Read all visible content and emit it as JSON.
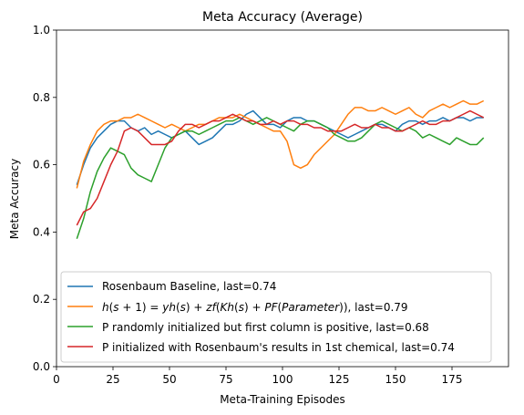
{
  "chart_data": {
    "type": "line",
    "title": "Meta Accuracy (Average)",
    "xlabel": "Meta-Training Episodes",
    "ylabel": "Meta Accuracy",
    "xlim": [
      0,
      200
    ],
    "ylim": [
      0.0,
      1.0
    ],
    "xticks": [
      0,
      25,
      50,
      75,
      100,
      125,
      150,
      175
    ],
    "xtick_labels": [
      "0",
      "25",
      "50",
      "75",
      "100",
      "125",
      "150",
      "175"
    ],
    "yticks": [
      0.0,
      0.2,
      0.4,
      0.6,
      0.8,
      1.0
    ],
    "ytick_labels": [
      "0.0",
      "0.2",
      "0.4",
      "0.6",
      "0.8",
      "1.0"
    ],
    "grid": false,
    "legend_position": "lower-left",
    "series": [
      {
        "name": "Rosenbaum Baseline, last=0.74",
        "color": "#1f77b4",
        "x": [
          9,
          12,
          15,
          18,
          21,
          24,
          27,
          30,
          33,
          36,
          39,
          42,
          45,
          48,
          51,
          54,
          57,
          60,
          63,
          66,
          69,
          72,
          75,
          78,
          81,
          84,
          87,
          90,
          93,
          96,
          99,
          102,
          105,
          108,
          111,
          114,
          117,
          120,
          123,
          126,
          129,
          132,
          135,
          138,
          141,
          144,
          147,
          150,
          153,
          156,
          159,
          162,
          165,
          168,
          171,
          174,
          177,
          180,
          183,
          186,
          189
        ],
        "y": [
          0.54,
          0.6,
          0.65,
          0.68,
          0.7,
          0.72,
          0.73,
          0.73,
          0.71,
          0.7,
          0.71,
          0.69,
          0.7,
          0.69,
          0.68,
          0.69,
          0.7,
          0.68,
          0.66,
          0.67,
          0.68,
          0.7,
          0.72,
          0.72,
          0.73,
          0.75,
          0.76,
          0.74,
          0.72,
          0.72,
          0.71,
          0.73,
          0.74,
          0.74,
          0.73,
          0.73,
          0.72,
          0.71,
          0.7,
          0.69,
          0.68,
          0.69,
          0.7,
          0.71,
          0.72,
          0.72,
          0.71,
          0.7,
          0.72,
          0.73,
          0.73,
          0.72,
          0.73,
          0.73,
          0.74,
          0.73,
          0.74,
          0.74,
          0.73,
          0.74,
          0.74
        ]
      },
      {
        "name": "h(s + 1) = yh(s) + zf(Kh(s) + PF(Parameter)), last=0.79",
        "color": "#ff7f0e",
        "x": [
          9,
          12,
          15,
          18,
          21,
          24,
          27,
          30,
          33,
          36,
          39,
          42,
          45,
          48,
          51,
          54,
          57,
          60,
          63,
          66,
          69,
          72,
          75,
          78,
          81,
          84,
          87,
          90,
          93,
          96,
          99,
          102,
          105,
          108,
          111,
          114,
          117,
          120,
          123,
          126,
          129,
          132,
          135,
          138,
          141,
          144,
          147,
          150,
          153,
          156,
          159,
          162,
          165,
          168,
          171,
          174,
          177,
          180,
          183,
          186,
          189
        ],
        "y": [
          0.53,
          0.61,
          0.66,
          0.7,
          0.72,
          0.73,
          0.73,
          0.74,
          0.74,
          0.75,
          0.74,
          0.73,
          0.72,
          0.71,
          0.72,
          0.71,
          0.7,
          0.71,
          0.72,
          0.72,
          0.73,
          0.74,
          0.74,
          0.74,
          0.75,
          0.74,
          0.73,
          0.72,
          0.71,
          0.7,
          0.7,
          0.67,
          0.6,
          0.59,
          0.6,
          0.63,
          0.65,
          0.67,
          0.69,
          0.72,
          0.75,
          0.77,
          0.77,
          0.76,
          0.76,
          0.77,
          0.76,
          0.75,
          0.76,
          0.77,
          0.75,
          0.74,
          0.76,
          0.77,
          0.78,
          0.77,
          0.78,
          0.79,
          0.78,
          0.78,
          0.79
        ]
      },
      {
        "name": "P randomly initialized but first column is positive, last=0.68",
        "color": "#2ca02c",
        "x": [
          9,
          12,
          15,
          18,
          21,
          24,
          27,
          30,
          33,
          36,
          39,
          42,
          45,
          48,
          51,
          54,
          57,
          60,
          63,
          66,
          69,
          72,
          75,
          78,
          81,
          84,
          87,
          90,
          93,
          96,
          99,
          102,
          105,
          108,
          111,
          114,
          117,
          120,
          123,
          126,
          129,
          132,
          135,
          138,
          141,
          144,
          147,
          150,
          153,
          156,
          159,
          162,
          165,
          168,
          171,
          174,
          177,
          180,
          183,
          186,
          189
        ],
        "y": [
          0.38,
          0.44,
          0.52,
          0.58,
          0.62,
          0.65,
          0.64,
          0.63,
          0.59,
          0.57,
          0.56,
          0.55,
          0.6,
          0.65,
          0.68,
          0.69,
          0.7,
          0.7,
          0.69,
          0.7,
          0.71,
          0.72,
          0.73,
          0.73,
          0.74,
          0.73,
          0.72,
          0.73,
          0.74,
          0.73,
          0.72,
          0.71,
          0.7,
          0.72,
          0.73,
          0.73,
          0.72,
          0.71,
          0.69,
          0.68,
          0.67,
          0.67,
          0.68,
          0.7,
          0.72,
          0.73,
          0.72,
          0.71,
          0.7,
          0.71,
          0.7,
          0.68,
          0.69,
          0.68,
          0.67,
          0.66,
          0.68,
          0.67,
          0.66,
          0.66,
          0.68
        ]
      },
      {
        "name": "P initialized with Rosenbaum's results in 1st chemical, last=0.74",
        "color": "#d62728",
        "x": [
          9,
          12,
          15,
          18,
          21,
          24,
          27,
          30,
          33,
          36,
          39,
          42,
          45,
          48,
          51,
          54,
          57,
          60,
          63,
          66,
          69,
          72,
          75,
          78,
          81,
          84,
          87,
          90,
          93,
          96,
          99,
          102,
          105,
          108,
          111,
          114,
          117,
          120,
          123,
          126,
          129,
          132,
          135,
          138,
          141,
          144,
          147,
          150,
          153,
          156,
          159,
          162,
          165,
          168,
          171,
          174,
          177,
          180,
          183,
          186,
          189
        ],
        "y": [
          0.42,
          0.46,
          0.47,
          0.5,
          0.55,
          0.6,
          0.64,
          0.7,
          0.71,
          0.7,
          0.68,
          0.66,
          0.66,
          0.66,
          0.67,
          0.7,
          0.72,
          0.72,
          0.71,
          0.72,
          0.73,
          0.73,
          0.74,
          0.75,
          0.74,
          0.73,
          0.73,
          0.72,
          0.72,
          0.73,
          0.72,
          0.73,
          0.73,
          0.72,
          0.72,
          0.71,
          0.71,
          0.7,
          0.7,
          0.7,
          0.71,
          0.72,
          0.71,
          0.71,
          0.72,
          0.71,
          0.71,
          0.7,
          0.7,
          0.71,
          0.72,
          0.73,
          0.72,
          0.72,
          0.73,
          0.73,
          0.74,
          0.75,
          0.76,
          0.75,
          0.74
        ]
      }
    ]
  }
}
